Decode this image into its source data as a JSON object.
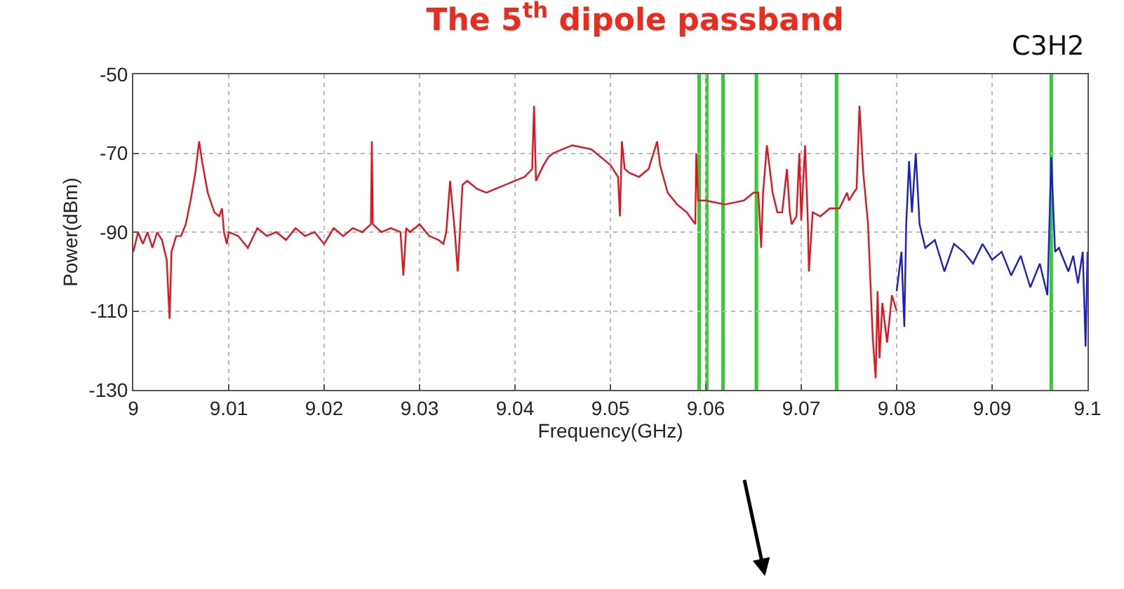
{
  "chart_data": {
    "type": "line",
    "title": "The 5$^{th}$ dipole passband",
    "xlabel": "Frequency(GHz)",
    "ylabel": "Power(dBm)",
    "annotations": [
      "C3H2"
    ],
    "xlim": [
      9,
      9.1
    ],
    "xticks": [
      9,
      9.01,
      9.02,
      9.03,
      9.04,
      9.05,
      9.06,
      9.07,
      9.08,
      9.09,
      9.1
    ],
    "ylim": [
      -130,
      -50
    ],
    "yticks": [
      -130,
      -110,
      -90,
      -70,
      -50
    ],
    "grid": true,
    "marker": "none",
    "line_style": "solid",
    "ref_lines": [
      {
        "axis": "x",
        "value": 9.0593,
        "color": "#33cc33"
      },
      {
        "axis": "x",
        "value": 9.0601,
        "color": "#33cc33"
      },
      {
        "axis": "x",
        "value": 9.0618,
        "color": "#33cc33"
      },
      {
        "axis": "x",
        "value": 9.0653,
        "color": "#33cc33"
      },
      {
        "axis": "x",
        "value": 9.0737,
        "color": "#33cc33"
      },
      {
        "axis": "x",
        "value": 9.0962,
        "color": "#33cc33"
      }
    ],
    "series": [
      {
        "color": "#e8101c",
        "x": [
          9.0,
          9.0005,
          9.001,
          9.0015,
          9.002,
          9.0025,
          9.003,
          9.0035,
          9.0038,
          9.004,
          9.0045,
          9.005,
          9.0055,
          9.006,
          9.0065,
          9.0069,
          9.0072,
          9.0078,
          9.0085,
          9.009,
          9.0093,
          9.0095,
          9.0098,
          9.01,
          9.011,
          9.012,
          9.013,
          9.014,
          9.015,
          9.016,
          9.017,
          9.018,
          9.019,
          9.02,
          9.021,
          9.022,
          9.023,
          9.024,
          9.0249,
          9.025,
          9.0251,
          9.026,
          9.027,
          9.028,
          9.0283,
          9.0286,
          9.029,
          9.03,
          9.031,
          9.032,
          9.0325,
          9.0328,
          9.0332,
          9.0337,
          9.034,
          9.0345,
          9.035,
          9.036,
          9.037,
          9.038,
          9.039,
          9.04,
          9.041,
          9.0418,
          9.042,
          9.0422,
          9.043,
          9.0435,
          9.044,
          9.046,
          9.048,
          9.049,
          9.05,
          9.0508,
          9.051,
          9.0512,
          9.0515,
          9.052,
          9.053,
          9.054,
          9.0549,
          9.0552,
          9.056,
          9.057,
          9.058,
          9.0589,
          9.059,
          9.0592,
          9.06,
          9.062,
          9.064,
          9.065,
          9.0655,
          9.0658,
          9.066,
          9.0664,
          9.067,
          9.0675,
          9.068,
          9.0685,
          9.0688,
          9.069,
          9.0695,
          9.0698,
          9.07,
          9.0704,
          9.0707,
          9.0708,
          9.0712,
          9.072,
          9.073,
          9.074,
          9.0748,
          9.075,
          9.0755,
          9.0758,
          9.0761,
          9.0765,
          9.077,
          9.0772,
          9.0775,
          9.0778,
          9.078,
          9.0782,
          9.0785,
          9.079,
          9.0795,
          9.08
        ],
        "values": [
          -95,
          -90,
          -93,
          -90,
          -94,
          -90,
          -92,
          -97,
          -112,
          -95,
          -91,
          -91,
          -88,
          -82,
          -75,
          -67,
          -72,
          -80,
          -85,
          -86,
          -84,
          -90,
          -93,
          -90,
          -91,
          -94,
          -89,
          -91,
          -90,
          -92,
          -89,
          -91,
          -90,
          -93,
          -89,
          -91,
          -89,
          -90,
          -88,
          -67,
          -88,
          -90,
          -89,
          -90,
          -101,
          -89,
          -90,
          -88,
          -91,
          -92,
          -93,
          -90,
          -77,
          -90,
          -100,
          -78,
          -77,
          -79,
          -80,
          -79,
          -78,
          -77,
          -76,
          -74,
          -58,
          -77,
          -73,
          -71,
          -70,
          -68,
          -69,
          -71,
          -73,
          -76,
          -86,
          -67,
          -74,
          -75,
          -76,
          -74,
          -67,
          -73,
          -80,
          -83,
          -85,
          -88,
          -70,
          -82,
          -82,
          -83,
          -82,
          -80,
          -80,
          -94,
          -80,
          -68,
          -80,
          -85,
          -85,
          -74,
          -85,
          -88,
          -86,
          -70,
          -87,
          -68,
          -88,
          -100,
          -85,
          -86,
          -84,
          -84,
          -80,
          -82,
          -80,
          -79,
          -58,
          -75,
          -88,
          -100,
          -117,
          -127,
          -105,
          -122,
          -108,
          -118,
          -106,
          -110
        ]
      },
      {
        "color": "#1a1adb",
        "x": [
          9.08,
          9.0805,
          9.0808,
          9.081,
          9.0813,
          9.0816,
          9.082,
          9.0824,
          9.083,
          9.084,
          9.085,
          9.086,
          9.087,
          9.088,
          9.089,
          9.09,
          9.091,
          9.092,
          9.093,
          9.094,
          9.095,
          9.0958,
          9.0962,
          9.0966,
          9.097,
          9.098,
          9.0985,
          9.099,
          9.0995,
          9.0998,
          9.1
        ],
        "values": [
          -105,
          -95,
          -114,
          -88,
          -72,
          -85,
          -70,
          -88,
          -94,
          -92,
          -100,
          -93,
          -95,
          -98,
          -93,
          -97,
          -95,
          -101,
          -96,
          -104,
          -98,
          -106,
          -71,
          -95,
          -94,
          -100,
          -96,
          -103,
          -95,
          -119,
          -95
        ]
      }
    ]
  }
}
